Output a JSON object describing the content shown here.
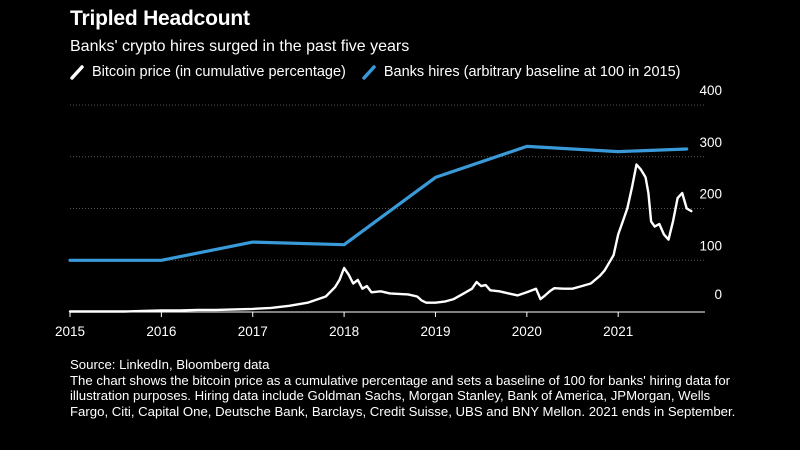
{
  "header": {
    "title": "Tripled Headcount",
    "subtitle": "Banks' crypto hires surged in the past five years"
  },
  "footer": {
    "source": "Source: LinkedIn, Bloomberg data",
    "note": "The chart shows the bitcoin price as a cumulative percentage and sets a baseline of 100 for banks' hiring data for illustration purposes. Hiring data include Goldman Sachs, Morgan Stanley, Bank of America, JPMorgan, Wells Fargo, Citi, Capital One, Deutsche Bank, Barclays, Credit Suisse, UBS and BNY Mellon. 2021 ends in September."
  },
  "colors": {
    "background": "#000000",
    "bitcoin": "#ffffff",
    "banks": "#3a9ad9",
    "gridline": "#555555",
    "text": "#ffffff"
  },
  "chart_data": {
    "type": "line",
    "title": "Tripled Headcount",
    "subtitle": "Banks' crypto hires surged in the past five years",
    "xlim": [
      2015,
      2021.95
    ],
    "ylim": [
      0,
      400
    ],
    "x_ticks": [
      2015,
      2016,
      2017,
      2018,
      2019,
      2020,
      2021
    ],
    "x_tick_labels": [
      "2015",
      "2016",
      "2017",
      "2018",
      "2019",
      "2020",
      "2021"
    ],
    "y_ticks": [
      0,
      100,
      200,
      300,
      400
    ],
    "y_tick_labels": [
      "0",
      "100",
      "200",
      "300",
      "400"
    ],
    "grid": "horizontal",
    "legend_position": "top",
    "series": [
      {
        "name": "Bitcoin price (in cumulative percentage)",
        "color": "#ffffff",
        "x": [
          2015.0,
          2015.2,
          2015.4,
          2015.6,
          2015.8,
          2016.0,
          2016.2,
          2016.4,
          2016.6,
          2016.8,
          2017.0,
          2017.2,
          2017.4,
          2017.6,
          2017.8,
          2017.9,
          2017.95,
          2018.0,
          2018.05,
          2018.1,
          2018.15,
          2018.2,
          2018.25,
          2018.3,
          2018.4,
          2018.5,
          2018.6,
          2018.7,
          2018.8,
          2018.85,
          2018.9,
          2019.0,
          2019.1,
          2019.2,
          2019.3,
          2019.4,
          2019.45,
          2019.5,
          2019.55,
          2019.6,
          2019.7,
          2019.8,
          2019.9,
          2020.0,
          2020.1,
          2020.15,
          2020.2,
          2020.25,
          2020.3,
          2020.4,
          2020.5,
          2020.6,
          2020.7,
          2020.8,
          2020.85,
          2020.9,
          2020.95,
          2021.0,
          2021.05,
          2021.1,
          2021.15,
          2021.2,
          2021.25,
          2021.3,
          2021.33,
          2021.36,
          2021.4,
          2021.45,
          2021.5,
          2021.55,
          2021.6,
          2021.65,
          2021.7,
          2021.75,
          2021.8
        ],
        "values": [
          1,
          1,
          1,
          1,
          2,
          3,
          3,
          4,
          4,
          5,
          6,
          8,
          12,
          18,
          30,
          48,
          62,
          85,
          72,
          55,
          62,
          45,
          50,
          38,
          40,
          36,
          35,
          34,
          30,
          22,
          18,
          18,
          20,
          25,
          35,
          45,
          58,
          50,
          52,
          42,
          40,
          36,
          32,
          38,
          45,
          25,
          32,
          40,
          46,
          45,
          45,
          50,
          55,
          70,
          80,
          95,
          110,
          150,
          175,
          200,
          240,
          285,
          275,
          260,
          230,
          175,
          165,
          170,
          150,
          140,
          175,
          220,
          230,
          200,
          195
        ]
      },
      {
        "name": "Banks hires (arbitrary baseline at 100 in 2015)",
        "color": "#3a9ad9",
        "x": [
          2015,
          2016,
          2017,
          2018,
          2019,
          2020,
          2021,
          2021.75
        ],
        "values": [
          100,
          100,
          135,
          130,
          260,
          320,
          310,
          315
        ]
      }
    ]
  }
}
